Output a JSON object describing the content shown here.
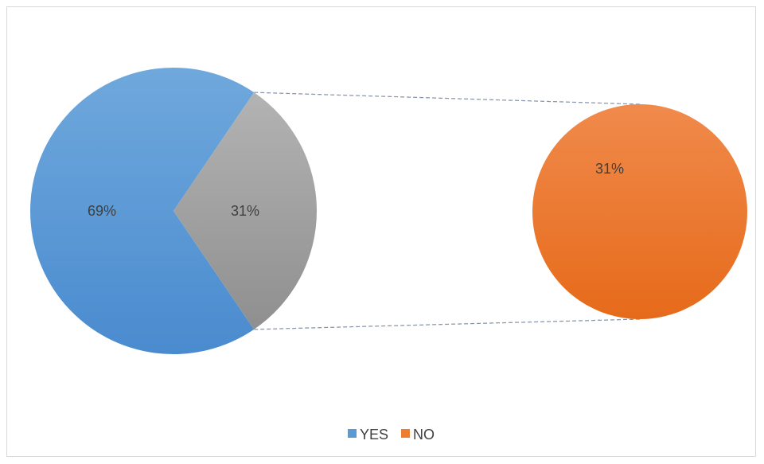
{
  "chart_data": {
    "type": "pie",
    "subtype": "pie-of-pie",
    "categories": [
      "YES",
      "NO"
    ],
    "values": [
      69,
      31
    ],
    "data_labels": [
      "69%",
      "31%"
    ],
    "secondary_pie": {
      "categories": [
        "NO"
      ],
      "values": [
        31
      ],
      "data_labels": [
        "31%"
      ]
    },
    "colors": {
      "YES": "#5b9bd5",
      "NO": "#ed7d31",
      "other_slice": "#a5a5a5",
      "connector": "#8497b0"
    },
    "legend": {
      "position": "bottom",
      "entries": [
        "YES",
        "NO"
      ]
    },
    "title": ""
  }
}
